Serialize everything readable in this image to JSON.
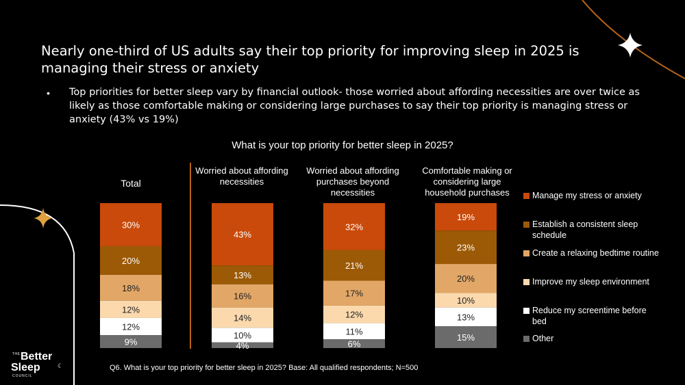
{
  "headline": "Nearly one-third of US adults say their top priority for improving sleep in 2025 is managing their stress or anxiety",
  "bullet": "Top priorities for better sleep vary by financial outlook- those worried about affording necessities are over twice as likely as those comfortable making or considering large purchases to say their top priority is managing stress or anxiety (43% vs 19%)",
  "footnote": "Q6. What is your top priority for better sleep in 2025? Base: All qualified respondents; N=500",
  "logo": {
    "the": "THE",
    "line1": "Better",
    "line2": "Sleep",
    "council": "COUNCIL"
  },
  "colors": {
    "background": "#000000",
    "accent_line": "#b8651a",
    "star_white": "#ffffff",
    "star_gold": "#e0a040"
  },
  "chart_data": {
    "type": "bar",
    "stacked": true,
    "normalized_percent": true,
    "title": "What is your top priority for better sleep in 2025?",
    "categories": [
      "Total",
      "Worried about affording necessities",
      "Worried about affording purchases beyond necessities",
      "Comfortable making or considering large household purchases"
    ],
    "series": [
      {
        "name": "Manage my stress or anxiety",
        "color": "#c94a0a",
        "values": [
          30,
          43,
          32,
          19
        ]
      },
      {
        "name": "Establish a consistent sleep schedule",
        "color": "#9c5a06",
        "values": [
          20,
          13,
          21,
          23
        ]
      },
      {
        "name": "Create a relaxing bedtime routine",
        "color": "#e2a766",
        "values": [
          18,
          16,
          17,
          20
        ]
      },
      {
        "name": "Improve my sleep environment",
        "color": "#fbd9ad",
        "values": [
          12,
          14,
          12,
          10
        ]
      },
      {
        "name": "Reduce my screentime before bed",
        "color": "#ffffff",
        "values": [
          12,
          10,
          11,
          13
        ]
      },
      {
        "name": "Other",
        "color": "#6b6b6b",
        "values": [
          9,
          4,
          6,
          15
        ]
      }
    ],
    "legend_position": "right",
    "grid": false,
    "xlabel": "",
    "ylabel": ""
  }
}
